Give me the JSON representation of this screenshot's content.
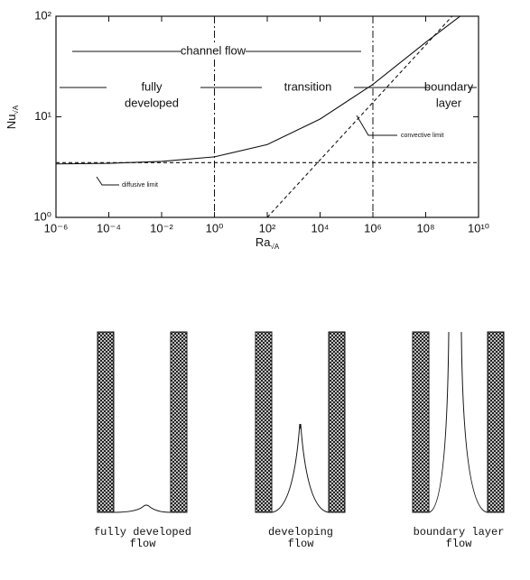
{
  "chart_data": {
    "type": "line",
    "log_x": true,
    "log_y": true,
    "x_label": {
      "main": "Ra",
      "sub": "√A"
    },
    "y_label": {
      "main": "Nu",
      "sub": "√A"
    },
    "xlim": [
      1e-06,
      10000000000
    ],
    "ylim": [
      1,
      100
    ],
    "xticks": [
      {
        "value": 1e-06,
        "label": "10⁻⁶"
      },
      {
        "value": 0.0001,
        "label": "10⁻⁴"
      },
      {
        "value": 0.01,
        "label": "10⁻²"
      },
      {
        "value": 1,
        "label": "10⁰"
      },
      {
        "value": 100,
        "label": "10²"
      },
      {
        "value": 10000,
        "label": "10⁴"
      },
      {
        "value": 1000000,
        "label": "10⁶"
      },
      {
        "value": 100000000,
        "label": "10⁸"
      },
      {
        "value": 10000000000,
        "label": "10¹⁰"
      }
    ],
    "yticks": [
      {
        "value": 1,
        "label": "10⁰"
      },
      {
        "value": 10,
        "label": "10¹"
      },
      {
        "value": 100,
        "label": "10²"
      }
    ],
    "series": [
      {
        "style": "solid",
        "color": "#111111",
        "x": [
          1e-06,
          0.0001,
          0.01,
          1,
          100,
          10000,
          1000000,
          100000000,
          2000000000
        ],
        "values": [
          3.4,
          3.45,
          3.6,
          4,
          5.3,
          9.5,
          21,
          55,
          100
        ]
      },
      {
        "style": "dashed",
        "color": "#111111",
        "x": [
          100,
          1000000000
        ],
        "values": [
          1,
          100
        ]
      },
      {
        "style": "dashed",
        "color": "#111111",
        "x": [
          1e-06,
          10000000000
        ],
        "values": [
          3.5,
          3.5
        ]
      }
    ],
    "dividers": [
      1,
      1000000
    ],
    "annotations": {
      "channel": "channel flow",
      "fully": [
        "fully",
        "developed"
      ],
      "transition": "transition",
      "boundary": [
        "boundary",
        "layer"
      ],
      "convective": "convective limit",
      "diffusive": "diffusive limit"
    }
  },
  "diagrams": [
    {
      "label": [
        "fully  developed",
        "flow"
      ]
    },
    {
      "label": [
        "developing",
        "flow"
      ]
    },
    {
      "label": [
        "boundary  layer",
        "flow"
      ]
    }
  ]
}
